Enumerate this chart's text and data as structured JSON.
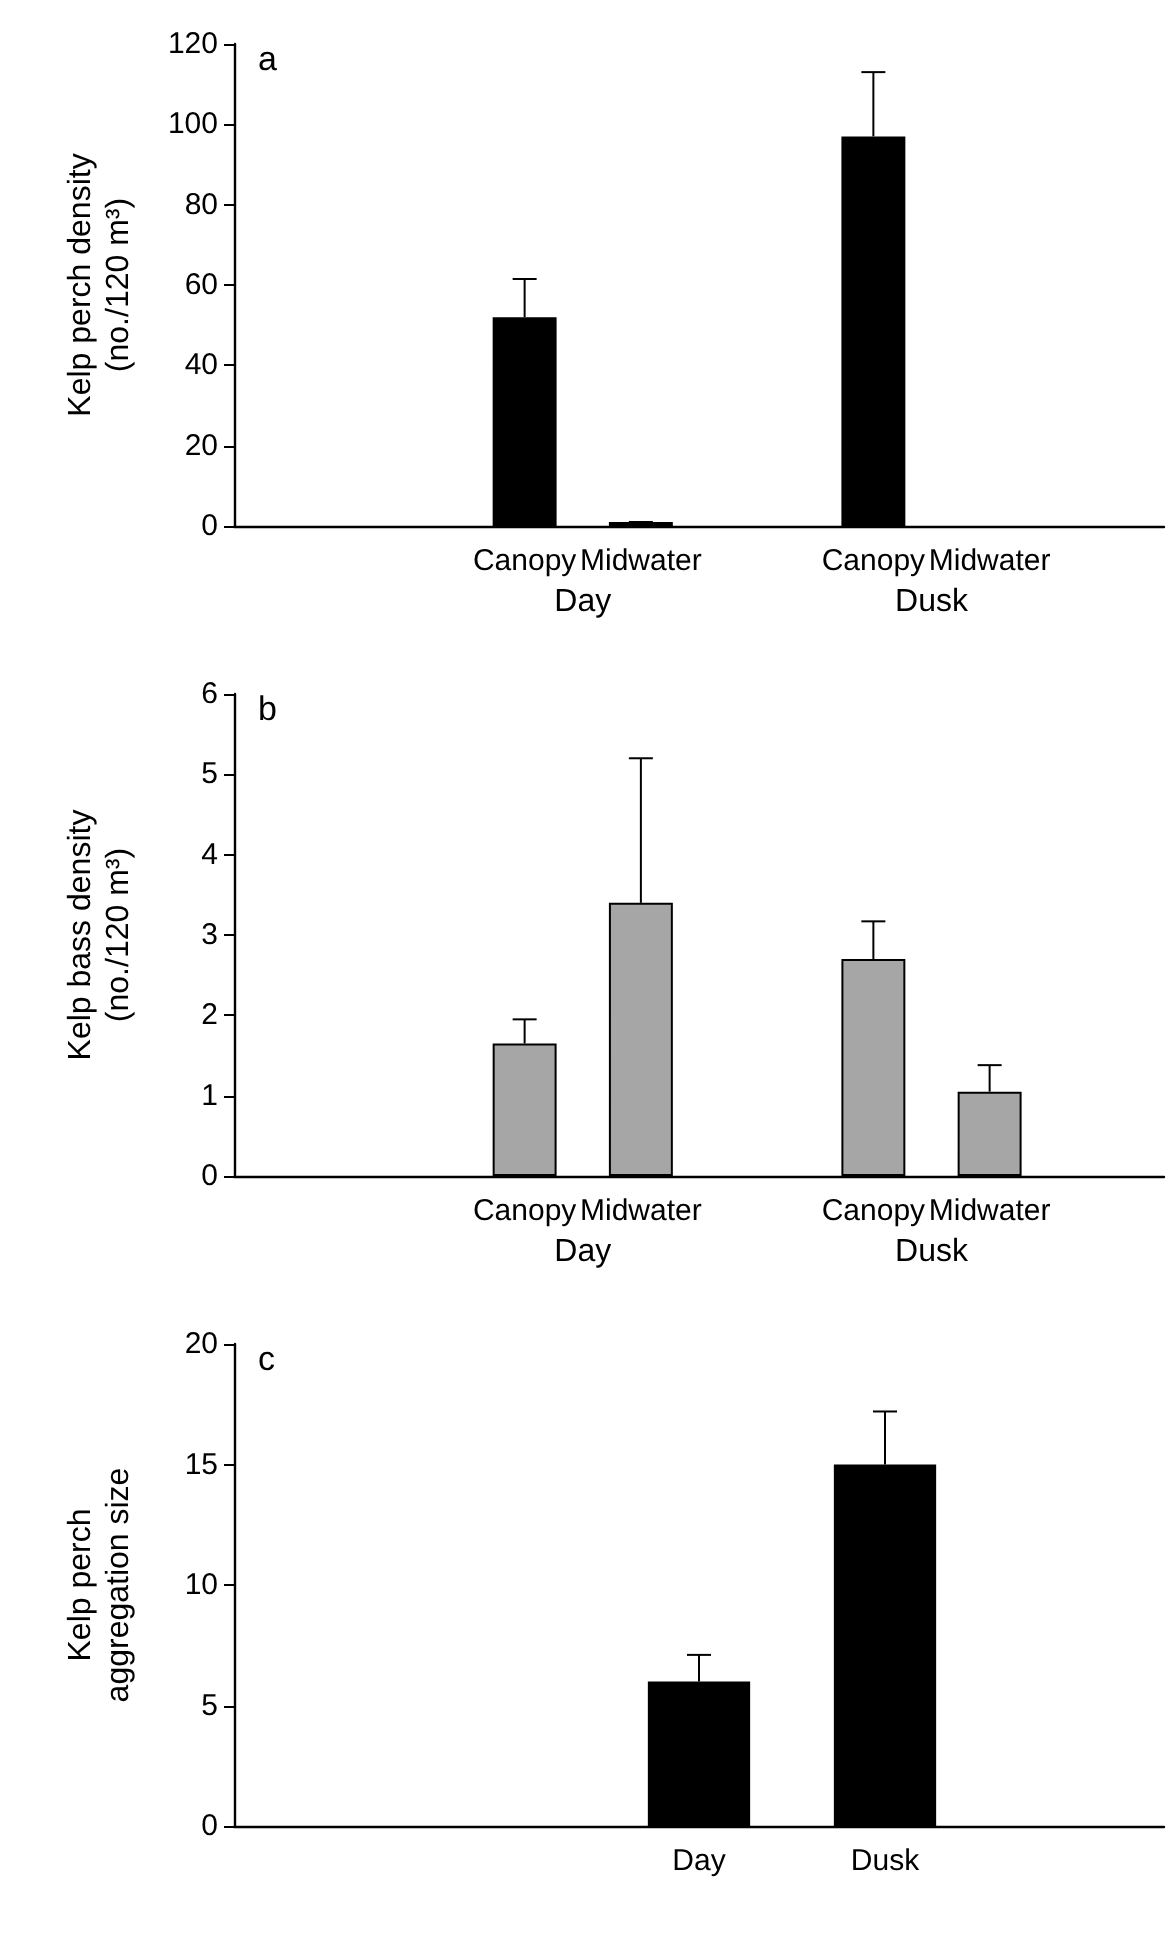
{
  "chart_data": [
    {
      "type": "bar",
      "title": "a",
      "ylabel": "Kelp perch density\n(no./120 m³)",
      "categories": [
        null,
        null,
        "Canopy",
        "Midwater",
        null,
        "Canopy",
        "Midwater",
        null
      ],
      "values": [
        null,
        null,
        52,
        1,
        null,
        97,
        null,
        null
      ],
      "errors": [
        null,
        null,
        [
          52,
          61.5
        ],
        [
          1,
          1
        ],
        null,
        [
          97,
          113
        ],
        null,
        null
      ],
      "color": "#000000",
      "ylim": [
        0,
        120
      ],
      "yticks": [
        0,
        20,
        40,
        60,
        80,
        100,
        120
      ],
      "annotations": [
        "Day",
        "Dusk"
      ],
      "grid": false
    },
    {
      "type": "bar",
      "title": "b",
      "ylabel": "Kelp bass density\n(no./120 m³)",
      "categories": [
        null,
        null,
        "Canopy",
        "Midwater",
        null,
        "Canopy",
        "Midwater",
        null
      ],
      "values": [
        null,
        null,
        1.65,
        3.4,
        null,
        2.7,
        1.05,
        null
      ],
      "errors": [
        null,
        null,
        [
          1.65,
          1.95
        ],
        [
          3.4,
          5.2
        ],
        null,
        [
          2.7,
          3.17
        ],
        [
          1.05,
          1.38
        ],
        null
      ],
      "color": "#a6a6a6",
      "ylim": [
        0,
        6
      ],
      "yticks": [
        0,
        1,
        2,
        3,
        4,
        5,
        6
      ],
      "annotations": [
        "Day",
        "Dusk"
      ],
      "grid": false
    },
    {
      "type": "bar",
      "title": "c",
      "ylabel": "Kelp perch\naggregation size",
      "categories": [
        null,
        null,
        "Day",
        "Dusk",
        null
      ],
      "values": [
        null,
        null,
        6,
        15,
        null
      ],
      "errors": [
        null,
        null,
        [
          6,
          7.1
        ],
        [
          15,
          17.2
        ],
        null
      ],
      "color": "#000000",
      "ylim": [
        0,
        20
      ],
      "yticks": [
        0,
        5,
        10,
        15,
        20
      ],
      "grid": false
    }
  ]
}
